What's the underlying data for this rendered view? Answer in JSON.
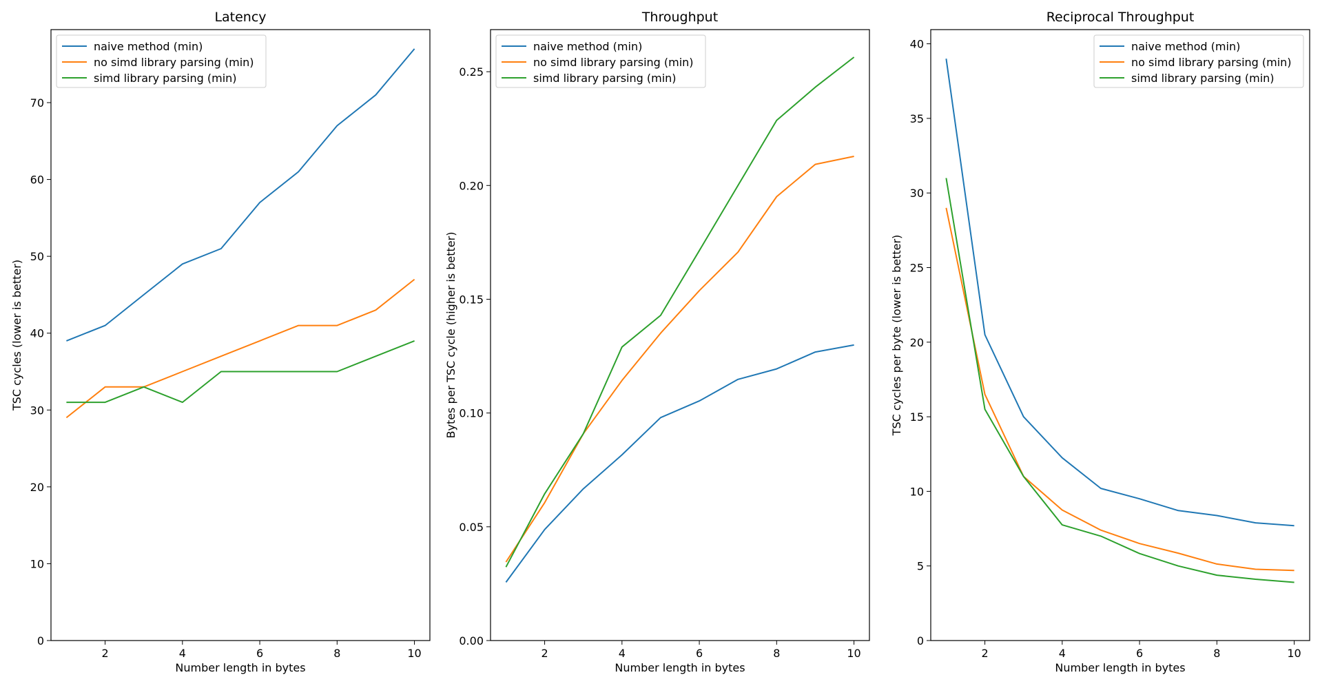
{
  "chart_data": [
    {
      "type": "line",
      "title": "Latency",
      "xlabel": "Number length in bytes",
      "ylabel": "TSC cycles (lower is better)",
      "xlim": [
        0.6,
        10.4
      ],
      "ylim": [
        0,
        79.5
      ],
      "xticks": [
        2,
        4,
        6,
        8,
        10
      ],
      "xtick_labels": [
        "2",
        "4",
        "6",
        "8",
        "10"
      ],
      "yticks": [
        0,
        10,
        20,
        30,
        40,
        50,
        60,
        70
      ],
      "ytick_labels": [
        "0",
        "10",
        "20",
        "30",
        "40",
        "50",
        "60",
        "70"
      ],
      "legend_position": "top-left",
      "x": [
        1,
        2,
        3,
        4,
        5,
        6,
        7,
        8,
        9,
        10
      ],
      "series": [
        {
          "name": "naive method (min)",
          "color": "#1f77b4",
          "values": [
            39,
            41,
            45,
            49,
            51,
            57,
            61,
            67,
            71,
            77
          ]
        },
        {
          "name": "no simd library parsing (min)",
          "color": "#ff7f0e",
          "values": [
            29,
            33,
            33,
            35,
            37,
            39,
            41,
            41,
            43,
            47
          ]
        },
        {
          "name": "simd library parsing (min)",
          "color": "#2ca02c",
          "values": [
            31,
            31,
            33,
            31,
            35,
            35,
            35,
            35,
            37,
            39
          ]
        }
      ]
    },
    {
      "type": "line",
      "title": "Throughput",
      "xlabel": "Number length in bytes",
      "ylabel": "Bytes per TSC cycle (higher is better)",
      "xlim": [
        0.6,
        10.4
      ],
      "ylim": [
        0,
        0.2685
      ],
      "xticks": [
        2,
        4,
        6,
        8,
        10
      ],
      "xtick_labels": [
        "2",
        "4",
        "6",
        "8",
        "10"
      ],
      "yticks": [
        0,
        0.05,
        0.1,
        0.15,
        0.2,
        0.25
      ],
      "ytick_labels": [
        "0.00",
        "0.05",
        "0.10",
        "0.15",
        "0.20",
        "0.25"
      ],
      "legend_position": "top-left",
      "x": [
        1,
        2,
        3,
        4,
        5,
        6,
        7,
        8,
        9,
        10
      ],
      "series": [
        {
          "name": "naive method (min)",
          "color": "#1f77b4",
          "values": [
            0.0256,
            0.0488,
            0.0667,
            0.0816,
            0.098,
            0.1053,
            0.1148,
            0.1194,
            0.1268,
            0.1299
          ]
        },
        {
          "name": "no simd library parsing (min)",
          "color": "#ff7f0e",
          "values": [
            0.0345,
            0.0606,
            0.0909,
            0.1143,
            0.1351,
            0.1538,
            0.1707,
            0.1951,
            0.2093,
            0.2128
          ]
        },
        {
          "name": "simd library parsing (min)",
          "color": "#2ca02c",
          "values": [
            0.0323,
            0.0645,
            0.0909,
            0.129,
            0.1429,
            0.1714,
            0.2,
            0.2286,
            0.2432,
            0.2564
          ]
        }
      ]
    },
    {
      "type": "line",
      "title": "Reciprocal Throughput",
      "xlabel": "Number length in bytes",
      "ylabel": "TSC cycles per byte (lower is better)",
      "xlim": [
        0.6,
        10.4
      ],
      "ylim": [
        0,
        40.95
      ],
      "xticks": [
        2,
        4,
        6,
        8,
        10
      ],
      "xtick_labels": [
        "2",
        "4",
        "6",
        "8",
        "10"
      ],
      "yticks": [
        0,
        5,
        10,
        15,
        20,
        25,
        30,
        35,
        40
      ],
      "ytick_labels": [
        "0",
        "5",
        "10",
        "15",
        "20",
        "25",
        "30",
        "35",
        "40"
      ],
      "legend_position": "top-right",
      "x": [
        1,
        2,
        3,
        4,
        5,
        6,
        7,
        8,
        9,
        10
      ],
      "series": [
        {
          "name": "naive method (min)",
          "color": "#1f77b4",
          "values": [
            39,
            20.5,
            15,
            12.25,
            10.2,
            9.5,
            8.71,
            8.38,
            7.89,
            7.7
          ]
        },
        {
          "name": "no simd library parsing (min)",
          "color": "#ff7f0e",
          "values": [
            29,
            16.5,
            11,
            8.75,
            7.4,
            6.5,
            5.86,
            5.13,
            4.78,
            4.7
          ]
        },
        {
          "name": "simd library parsing (min)",
          "color": "#2ca02c",
          "values": [
            31,
            15.5,
            11,
            7.75,
            7,
            5.83,
            5,
            4.38,
            4.11,
            3.9
          ]
        }
      ]
    }
  ]
}
